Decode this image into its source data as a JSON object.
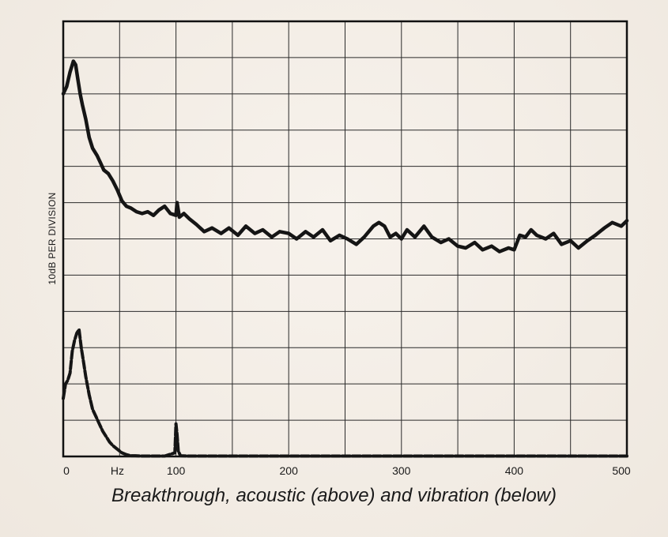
{
  "chart_data": {
    "type": "line",
    "title": "",
    "caption": "Breakthrough, acoustic (above) and vibration (below)",
    "ylabel": "10dB PER DIVISION",
    "x_unit_label": "Hz",
    "xlim": [
      0,
      500
    ],
    "x_ticks": [
      {
        "value": 0,
        "label": "0"
      },
      {
        "value": 100,
        "label": "100"
      },
      {
        "value": 200,
        "label": "200"
      },
      {
        "value": 300,
        "label": "300"
      },
      {
        "value": 400,
        "label": "400"
      },
      {
        "value": 500,
        "label": "500"
      }
    ],
    "ylim_divisions": [
      0,
      12
    ],
    "grid": true,
    "series": [
      {
        "x": [
          0,
          3,
          6,
          9,
          11,
          13,
          15,
          17,
          20,
          23,
          26,
          30,
          33,
          36,
          40,
          44,
          48,
          52,
          56,
          60,
          65,
          70,
          75,
          80,
          85,
          90,
          95,
          100,
          101,
          103,
          107,
          112,
          118,
          125,
          132,
          140,
          147,
          155,
          162,
          170,
          177,
          185,
          192,
          200,
          207,
          215,
          222,
          230,
          237,
          245,
          252,
          260,
          267,
          275,
          280,
          285,
          290,
          295,
          300,
          305,
          312,
          320,
          327,
          335,
          342,
          350,
          357,
          365,
          372,
          380,
          387,
          395,
          400,
          405,
          410,
          415,
          420,
          428,
          435,
          442,
          450,
          457,
          465,
          472,
          480,
          487,
          495,
          500
        ],
        "y": [
          10.0,
          10.2,
          10.6,
          10.9,
          10.8,
          10.4,
          10.0,
          9.7,
          9.3,
          8.8,
          8.5,
          8.3,
          8.1,
          7.9,
          7.8,
          7.6,
          7.35,
          7.05,
          6.9,
          6.85,
          6.75,
          6.7,
          6.75,
          6.65,
          6.8,
          6.9,
          6.7,
          6.65,
          7.0,
          6.6,
          6.7,
          6.55,
          6.4,
          6.2,
          6.3,
          6.15,
          6.3,
          6.1,
          6.35,
          6.15,
          6.25,
          6.05,
          6.2,
          6.15,
          6.0,
          6.2,
          6.05,
          6.25,
          5.95,
          6.1,
          6.0,
          5.85,
          6.05,
          6.35,
          6.45,
          6.35,
          6.05,
          6.15,
          6.0,
          6.25,
          6.05,
          6.35,
          6.05,
          5.9,
          6.0,
          5.8,
          5.75,
          5.9,
          5.7,
          5.8,
          5.65,
          5.75,
          5.7,
          6.1,
          6.05,
          6.25,
          6.1,
          6.0,
          6.15,
          5.85,
          5.95,
          5.75,
          5.95,
          6.1,
          6.3,
          6.45,
          6.35,
          6.5
        ]
      },
      {
        "x": [
          0,
          2,
          4,
          6,
          8,
          10,
          12,
          14,
          16,
          18,
          20,
          23,
          26,
          29,
          32,
          35,
          38,
          41,
          44,
          48,
          52,
          56,
          60,
          64,
          70,
          80,
          90,
          99,
          100,
          101,
          102,
          104,
          110,
          130,
          160,
          200,
          250,
          300,
          350,
          400,
          450,
          500
        ],
        "y": [
          1.6,
          2.0,
          2.1,
          2.3,
          2.9,
          3.2,
          3.4,
          3.5,
          3.0,
          2.6,
          2.2,
          1.7,
          1.3,
          1.1,
          0.9,
          0.7,
          0.55,
          0.4,
          0.3,
          0.2,
          0.1,
          0.05,
          0.02,
          0.02,
          0.01,
          0.01,
          0.01,
          0.1,
          0.9,
          0.6,
          0.15,
          0.02,
          0.01,
          0.01,
          0.01,
          0.01,
          0.01,
          0.01,
          0.01,
          0.01,
          0.01,
          0.01
        ]
      }
    ]
  }
}
